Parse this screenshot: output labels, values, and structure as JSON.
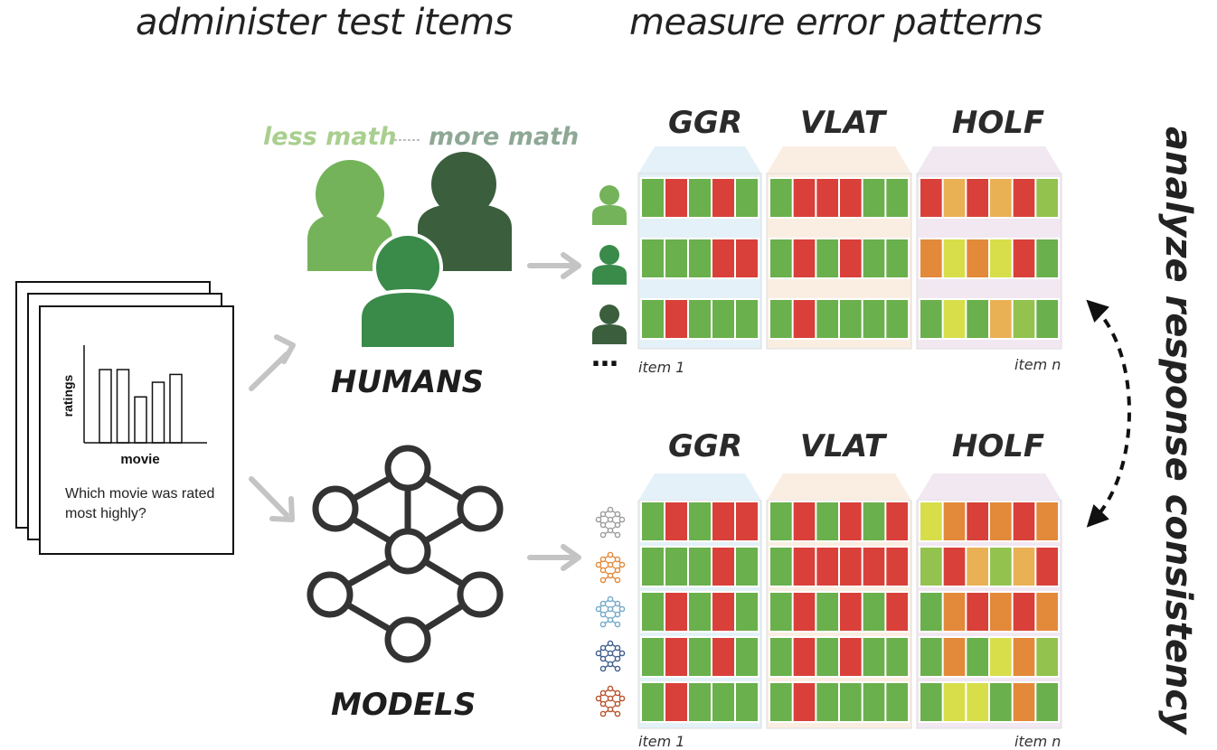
{
  "headings": {
    "administer": "administer test items",
    "measure": "measure error patterns",
    "analyze": "analyze response consistency"
  },
  "card": {
    "ylabel": "ratings",
    "xlabel": "movie",
    "question": "Which movie was rated most highly?",
    "bar_values": [
      0.75,
      0.75,
      0.47,
      0.62,
      0.7
    ]
  },
  "humans": {
    "label": "HUMANS",
    "less_math": "less math",
    "more_math": "more math",
    "ellipsis": "…"
  },
  "models": {
    "label": "MODELS"
  },
  "benchmarks": [
    "GGR",
    "VLAT",
    "HOLF"
  ],
  "items": {
    "first": "item 1",
    "last": "item n"
  },
  "colors": {
    "correct": "#6ab04c",
    "wrong": "#d9403a",
    "orange": "#e3893a",
    "lightorange": "#eab054",
    "yellow": "#d7de4a",
    "lightgreen": "#93c24f",
    "person_light": "#74b35a",
    "person_mid": "#3a8a4a",
    "person_dark": "#3b5e3d",
    "ggr_bg": "#e4f1f8",
    "vlat_bg": "#faeee2",
    "holf_bg": "#f1e8f2",
    "less_math": "#a9cf8f",
    "more_math": "#8ea895",
    "model_icons": [
      "#9c9c9c",
      "#e38a3a",
      "#74a9c9",
      "#3f5f8c",
      "#b8522c"
    ]
  },
  "human_grid": [
    {
      "person": "light",
      "GGR": [
        "g",
        "r",
        "g",
        "r",
        "g"
      ],
      "VLAT": [
        "g",
        "r",
        "r",
        "r",
        "g",
        "g"
      ],
      "HOLF": [
        "r",
        "lo",
        "r",
        "lo",
        "r",
        "lg"
      ]
    },
    {
      "person": "mid",
      "GGR": [
        "g",
        "g",
        "g",
        "r",
        "r"
      ],
      "VLAT": [
        "g",
        "r",
        "g",
        "r",
        "g",
        "g"
      ],
      "HOLF": [
        "o",
        "y",
        "o",
        "y",
        "r",
        "g"
      ]
    },
    {
      "person": "dark",
      "GGR": [
        "g",
        "r",
        "g",
        "g",
        "g"
      ],
      "VLAT": [
        "g",
        "r",
        "g",
        "g",
        "g",
        "g"
      ],
      "HOLF": [
        "g",
        "y",
        "g",
        "lo",
        "lg",
        "g"
      ]
    }
  ],
  "model_grid": [
    {
      "GGR": [
        "g",
        "r",
        "g",
        "r",
        "r"
      ],
      "VLAT": [
        "g",
        "r",
        "g",
        "r",
        "g",
        "r"
      ],
      "HOLF": [
        "y",
        "o",
        "r",
        "o",
        "r",
        "o"
      ]
    },
    {
      "GGR": [
        "g",
        "g",
        "g",
        "r",
        "g"
      ],
      "VLAT": [
        "g",
        "r",
        "r",
        "r",
        "r",
        "r"
      ],
      "HOLF": [
        "lg",
        "r",
        "lo",
        "lg",
        "lo",
        "r"
      ]
    },
    {
      "GGR": [
        "g",
        "r",
        "g",
        "r",
        "g"
      ],
      "VLAT": [
        "g",
        "r",
        "g",
        "r",
        "g",
        "r"
      ],
      "HOLF": [
        "g",
        "o",
        "r",
        "o",
        "r",
        "o"
      ]
    },
    {
      "GGR": [
        "g",
        "r",
        "g",
        "r",
        "g"
      ],
      "VLAT": [
        "g",
        "r",
        "g",
        "r",
        "g",
        "g"
      ],
      "HOLF": [
        "g",
        "o",
        "g",
        "y",
        "o",
        "lg"
      ]
    },
    {
      "GGR": [
        "g",
        "r",
        "g",
        "g",
        "g"
      ],
      "VLAT": [
        "g",
        "r",
        "g",
        "g",
        "g",
        "g"
      ],
      "HOLF": [
        "g",
        "y",
        "y",
        "g",
        "o",
        "g"
      ]
    }
  ]
}
